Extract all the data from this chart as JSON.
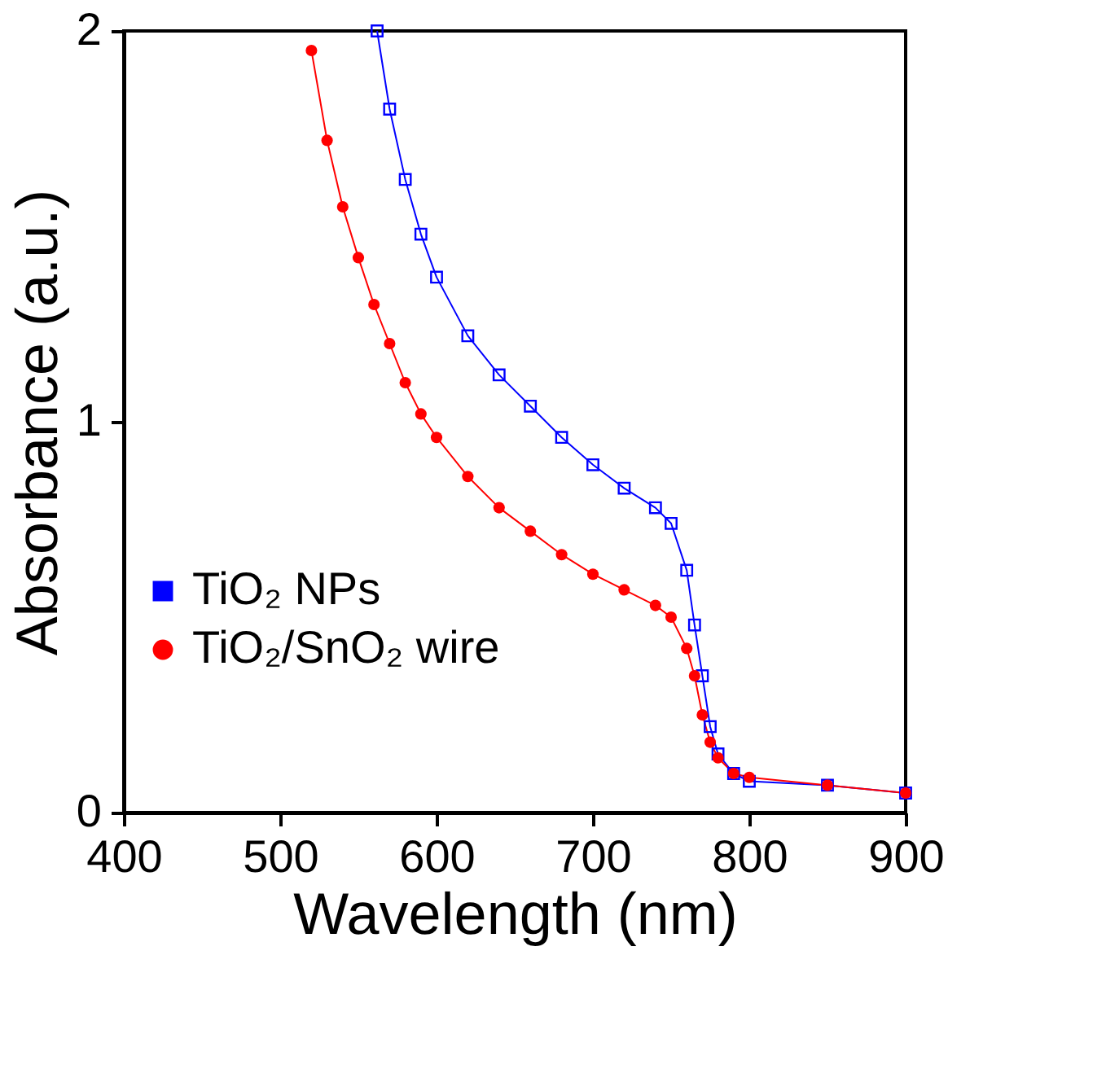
{
  "chart_data": {
    "type": "line",
    "xlabel": "Wavelength (nm)",
    "ylabel": "Absorbance (a.u.)",
    "xlim": [
      400,
      900
    ],
    "xticks": [
      400,
      500,
      600,
      700,
      800,
      900
    ],
    "ylim": [
      0,
      2
    ],
    "yticks": [
      0,
      1,
      2
    ],
    "grid": false,
    "legend": "bottom left",
    "series": [
      {
        "name": "TiO₂ NPs",
        "color": "#0000ff",
        "marker": "square",
        "x": [
          562,
          570,
          580,
          590,
          600,
          620,
          640,
          660,
          680,
          700,
          720,
          740,
          750,
          760,
          765,
          770,
          775,
          780,
          790,
          800,
          850,
          900
        ],
        "values": [
          2.0,
          1.8,
          1.62,
          1.48,
          1.37,
          1.22,
          1.12,
          1.04,
          0.96,
          0.89,
          0.83,
          0.78,
          0.74,
          0.62,
          0.48,
          0.35,
          0.22,
          0.15,
          0.1,
          0.08,
          0.07,
          0.05
        ]
      },
      {
        "name": "TiO₂/SnO₂ wire",
        "color": "#ff0000",
        "marker": "circle",
        "x": [
          520,
          530,
          540,
          550,
          560,
          570,
          580,
          590,
          600,
          620,
          640,
          660,
          680,
          700,
          720,
          740,
          750,
          760,
          765,
          770,
          775,
          780,
          790,
          800,
          850,
          900
        ],
        "values": [
          1.95,
          1.72,
          1.55,
          1.42,
          1.3,
          1.2,
          1.1,
          1.02,
          0.96,
          0.86,
          0.78,
          0.72,
          0.66,
          0.61,
          0.57,
          0.53,
          0.5,
          0.42,
          0.35,
          0.25,
          0.18,
          0.14,
          0.1,
          0.09,
          0.07,
          0.05
        ]
      }
    ]
  }
}
